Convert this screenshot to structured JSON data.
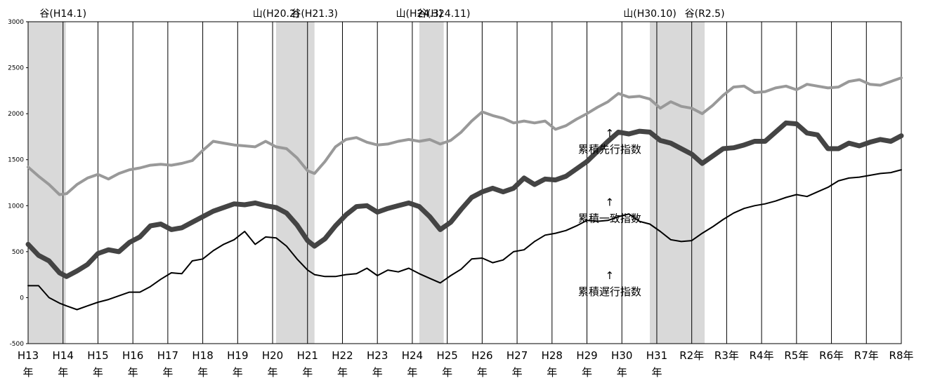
{
  "chart_data": {
    "type": "line",
    "ylim": [
      -500,
      3000
    ],
    "yticks": [
      -500,
      0,
      500,
      1000,
      1500,
      2000,
      2500,
      3000
    ],
    "year_labels": [
      [
        "H13",
        "年"
      ],
      [
        "H14",
        "年"
      ],
      [
        "H15",
        "年"
      ],
      [
        "H16",
        "年"
      ],
      [
        "H17",
        "年"
      ],
      [
        "H18",
        "年"
      ],
      [
        "H19",
        "年"
      ],
      [
        "H20",
        "年"
      ],
      [
        "H21",
        "年"
      ],
      [
        "H22",
        "年"
      ],
      [
        "H23",
        "年"
      ],
      [
        "H24",
        "年"
      ],
      [
        "H25",
        "年"
      ],
      [
        "H26",
        "年"
      ],
      [
        "H27",
        "年"
      ],
      [
        "H28",
        "年"
      ],
      [
        "H29",
        "年"
      ],
      [
        "H30",
        "年"
      ],
      [
        "H31",
        "年"
      ],
      [
        "R2年"
      ],
      [
        "R3年"
      ],
      [
        "R4年"
      ],
      [
        "R5年"
      ],
      [
        "R6年"
      ],
      [
        "R7年"
      ],
      [
        "R8年"
      ]
    ],
    "shaded_periods": [
      [
        2001.0,
        2002.08
      ],
      [
        2008.1,
        2009.2
      ],
      [
        2012.2,
        2012.9
      ],
      [
        2018.8,
        2020.37
      ]
    ],
    "turning_point_labels": [
      {
        "text": "谷(H14.1)",
        "date": 2002.0
      },
      {
        "text": "山(H20.2)",
        "date": 2008.1
      },
      {
        "text": "谷(H21.3)",
        "date": 2009.2
      },
      {
        "text": "山(H24.3)",
        "date": 2012.2
      },
      {
        "text": "谷(H24.11)",
        "date": 2012.9
      },
      {
        "text": "山(H30.10)",
        "date": 2018.8
      },
      {
        "text": "谷(R2.5)",
        "date": 2020.37
      }
    ],
    "series": [
      {
        "name": "累積先行指数",
        "color": "#999999",
        "x": [
          2001.0,
          2001.3,
          2001.6,
          2001.9,
          2002.1,
          2002.4,
          2002.7,
          2003.0,
          2003.3,
          2003.6,
          2003.9,
          2004.2,
          2004.5,
          2004.8,
          2005.1,
          2005.4,
          2005.7,
          2006.0,
          2006.3,
          2006.6,
          2006.9,
          2007.2,
          2007.5,
          2007.8,
          2008.1,
          2008.4,
          2008.7,
          2009.0,
          2009.2,
          2009.5,
          2009.8,
          2010.1,
          2010.4,
          2010.7,
          2011.0,
          2011.3,
          2011.6,
          2011.9,
          2012.2,
          2012.5,
          2012.8,
          2013.1,
          2013.4,
          2013.7,
          2014.0,
          2014.3,
          2014.6,
          2014.9,
          2015.2,
          2015.5,
          2015.8,
          2016.1,
          2016.4,
          2016.7,
          2017.0,
          2017.3,
          2017.6,
          2017.9,
          2018.2,
          2018.5,
          2018.8,
          2019.1,
          2019.4,
          2019.7,
          2020.0,
          2020.3,
          2020.6,
          2020.9,
          2021.2,
          2021.5,
          2021.8,
          2022.1,
          2022.4,
          2022.7,
          2023.0,
          2023.3,
          2023.6,
          2023.9,
          2024.2,
          2024.5,
          2024.8,
          2025.1,
          2025.4,
          2025.7,
          2026.0
        ],
        "values": [
          1420,
          1320,
          1230,
          1120,
          1130,
          1230,
          1300,
          1340,
          1290,
          1350,
          1390,
          1410,
          1440,
          1450,
          1440,
          1460,
          1490,
          1600,
          1700,
          1680,
          1660,
          1650,
          1640,
          1700,
          1640,
          1620,
          1520,
          1380,
          1350,
          1480,
          1640,
          1720,
          1740,
          1690,
          1660,
          1670,
          1700,
          1720,
          1700,
          1720,
          1670,
          1710,
          1800,
          1920,
          2020,
          1980,
          1950,
          1900,
          1920,
          1900,
          1920,
          1830,
          1870,
          1940,
          2000,
          2070,
          2130,
          2220,
          2180,
          2190,
          2160,
          2060,
          2130,
          2080,
          2060,
          2000,
          2090,
          2200,
          2290,
          2300,
          2230,
          2240,
          2280,
          2300,
          2260,
          2320,
          2300,
          2280,
          2290,
          2350,
          2370,
          2320,
          2310,
          2350,
          2390
        ]
      },
      {
        "name": "累積一致指数",
        "color": "#444444",
        "x": [
          2001.0,
          2001.3,
          2001.6,
          2001.9,
          2002.1,
          2002.4,
          2002.7,
          2003.0,
          2003.3,
          2003.6,
          2003.9,
          2004.2,
          2004.5,
          2004.8,
          2005.1,
          2005.4,
          2005.7,
          2006.0,
          2006.3,
          2006.6,
          2006.9,
          2007.2,
          2007.5,
          2007.8,
          2008.1,
          2008.4,
          2008.7,
          2009.0,
          2009.2,
          2009.5,
          2009.8,
          2010.1,
          2010.4,
          2010.7,
          2011.0,
          2011.3,
          2011.6,
          2011.9,
          2012.2,
          2012.5,
          2012.8,
          2013.1,
          2013.4,
          2013.7,
          2014.0,
          2014.3,
          2014.6,
          2014.9,
          2015.2,
          2015.5,
          2015.8,
          2016.1,
          2016.4,
          2016.7,
          2017.0,
          2017.3,
          2017.6,
          2017.9,
          2018.2,
          2018.5,
          2018.8,
          2019.1,
          2019.4,
          2019.7,
          2020.0,
          2020.3,
          2020.6,
          2020.9,
          2021.2,
          2021.5,
          2021.8,
          2022.1,
          2022.4,
          2022.7,
          2023.0,
          2023.3,
          2023.6,
          2023.9,
          2024.2,
          2024.5,
          2024.8,
          2025.1,
          2025.4,
          2025.7,
          2026.0
        ],
        "values": [
          580,
          460,
          400,
          270,
          230,
          290,
          360,
          480,
          520,
          500,
          600,
          660,
          780,
          800,
          740,
          760,
          820,
          880,
          940,
          980,
          1020,
          1010,
          1030,
          1000,
          980,
          920,
          790,
          620,
          560,
          640,
          780,
          900,
          990,
          1000,
          930,
          970,
          1000,
          1030,
          990,
          880,
          740,
          820,
          960,
          1090,
          1150,
          1190,
          1150,
          1190,
          1300,
          1230,
          1290,
          1280,
          1320,
          1400,
          1480,
          1590,
          1700,
          1800,
          1780,
          1810,
          1800,
          1710,
          1680,
          1620,
          1560,
          1460,
          1540,
          1620,
          1630,
          1660,
          1700,
          1700,
          1800,
          1900,
          1890,
          1790,
          1770,
          1620,
          1620,
          1680,
          1650,
          1690,
          1720,
          1700,
          1760
        ]
      },
      {
        "name": "累積遅行指数",
        "color": "#000000",
        "x": [
          2001.0,
          2001.3,
          2001.6,
          2001.9,
          2002.1,
          2002.4,
          2002.7,
          2003.0,
          2003.3,
          2003.6,
          2003.9,
          2004.2,
          2004.5,
          2004.8,
          2005.1,
          2005.4,
          2005.7,
          2006.0,
          2006.3,
          2006.6,
          2006.9,
          2007.2,
          2007.5,
          2007.8,
          2008.1,
          2008.4,
          2008.7,
          2009.0,
          2009.2,
          2009.5,
          2009.8,
          2010.1,
          2010.4,
          2010.7,
          2011.0,
          2011.3,
          2011.6,
          2011.9,
          2012.2,
          2012.5,
          2012.8,
          2013.1,
          2013.4,
          2013.7,
          2014.0,
          2014.3,
          2014.6,
          2014.9,
          2015.2,
          2015.5,
          2015.8,
          2016.1,
          2016.4,
          2016.7,
          2017.0,
          2017.3,
          2017.6,
          2017.9,
          2018.2,
          2018.5,
          2018.8,
          2019.1,
          2019.4,
          2019.7,
          2020.0,
          2020.3,
          2020.6,
          2020.9,
          2021.2,
          2021.5,
          2021.8,
          2022.1,
          2022.4,
          2022.7,
          2023.0,
          2023.3,
          2023.6,
          2023.9,
          2024.2,
          2024.5,
          2024.8,
          2025.1,
          2025.4,
          2025.7,
          2026.0
        ],
        "values": [
          130,
          130,
          0,
          -60,
          -90,
          -130,
          -90,
          -50,
          -20,
          20,
          60,
          60,
          120,
          200,
          270,
          260,
          400,
          420,
          510,
          580,
          630,
          720,
          580,
          660,
          650,
          560,
          420,
          300,
          250,
          230,
          230,
          250,
          260,
          320,
          240,
          300,
          280,
          320,
          260,
          210,
          160,
          240,
          310,
          420,
          430,
          380,
          410,
          500,
          520,
          610,
          680,
          700,
          730,
          780,
          840,
          830,
          840,
          880,
          910,
          830,
          800,
          720,
          630,
          610,
          620,
          700,
          770,
          850,
          920,
          970,
          1000,
          1020,
          1050,
          1090,
          1120,
          1100,
          1150,
          1200,
          1270,
          1300,
          1310,
          1330,
          1350,
          1360,
          1390
        ]
      }
    ],
    "series_labels": [
      {
        "arrow": "↑",
        "text": "累積先行指数",
        "x": 2017.65,
        "y": 1750
      },
      {
        "arrow": "↑",
        "text": "累積一致指数",
        "x": 2017.65,
        "y": 1000
      },
      {
        "arrow": "↑",
        "text": "累積遅行指数",
        "x": 2017.65,
        "y": 200
      }
    ],
    "grid": true
  }
}
